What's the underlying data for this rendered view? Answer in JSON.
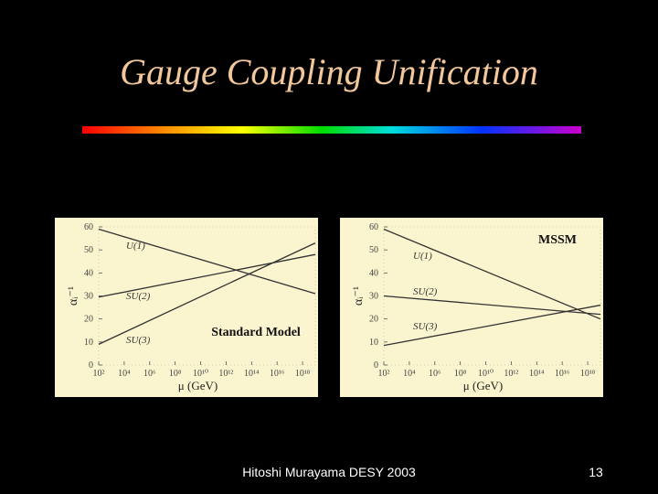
{
  "slide": {
    "title": "Gauge Coupling Unification",
    "footer": "Hitoshi Murayama DESY 2003",
    "page": "13"
  },
  "chart_data": [
    {
      "type": "line",
      "annotation": "Standard Model",
      "xlabel": "μ (GeV)",
      "ylabel": "αᵢ⁻¹",
      "xscale": "log",
      "xlim": [
        100,
        1e+19
      ],
      "ylim": [
        0,
        60
      ],
      "xticks": [
        {
          "value": 100,
          "label": "10²"
        },
        {
          "value": 10000.0,
          "label": "10⁴"
        },
        {
          "value": 1000000.0,
          "label": "10⁶"
        },
        {
          "value": 100000000.0,
          "label": "10⁸"
        },
        {
          "value": 10000000000.0,
          "label": "10¹⁰"
        },
        {
          "value": 1000000000000.0,
          "label": "10¹²"
        },
        {
          "value": 100000000000000.0,
          "label": "10¹⁴"
        },
        {
          "value": 1e+16,
          "label": "10¹⁶"
        },
        {
          "value": 1e+18,
          "label": "10¹⁸"
        }
      ],
      "yticks": [
        0,
        10,
        20,
        30,
        40,
        50,
        60
      ],
      "series": [
        {
          "name": "U(1)",
          "color": "#333333",
          "x": [
            100,
            1e+19
          ],
          "values": [
            59,
            31
          ]
        },
        {
          "name": "SU(2)",
          "color": "#333333",
          "x": [
            100,
            1e+19
          ],
          "values": [
            29.5,
            48
          ]
        },
        {
          "name": "SU(3)",
          "color": "#333333",
          "x": [
            100,
            1e+19
          ],
          "values": [
            9,
            53
          ]
        }
      ]
    },
    {
      "type": "line",
      "annotation": "MSSM",
      "xlabel": "μ (GeV)",
      "ylabel": "αᵢ⁻¹",
      "xscale": "log",
      "xlim": [
        100,
        1e+19
      ],
      "ylim": [
        0,
        60
      ],
      "xticks": [
        {
          "value": 100,
          "label": "10²"
        },
        {
          "value": 10000.0,
          "label": "10⁴"
        },
        {
          "value": 1000000.0,
          "label": "10⁶"
        },
        {
          "value": 100000000.0,
          "label": "10⁸"
        },
        {
          "value": 10000000000.0,
          "label": "10¹⁰"
        },
        {
          "value": 1000000000000.0,
          "label": "10¹²"
        },
        {
          "value": 100000000000000.0,
          "label": "10¹⁴"
        },
        {
          "value": 1e+16,
          "label": "10¹⁶"
        },
        {
          "value": 1e+18,
          "label": "10¹⁸"
        }
      ],
      "yticks": [
        0,
        10,
        20,
        30,
        40,
        50,
        60
      ],
      "series": [
        {
          "name": "U(1)",
          "color": "#333333",
          "x": [
            100,
            1e+19
          ],
          "values": [
            59,
            20
          ]
        },
        {
          "name": "SU(2)",
          "color": "#333333",
          "x": [
            100,
            1e+19
          ],
          "values": [
            30,
            22
          ]
        },
        {
          "name": "SU(3)",
          "color": "#333333",
          "x": [
            100,
            1e+19
          ],
          "values": [
            8.5,
            26
          ]
        }
      ]
    }
  ]
}
